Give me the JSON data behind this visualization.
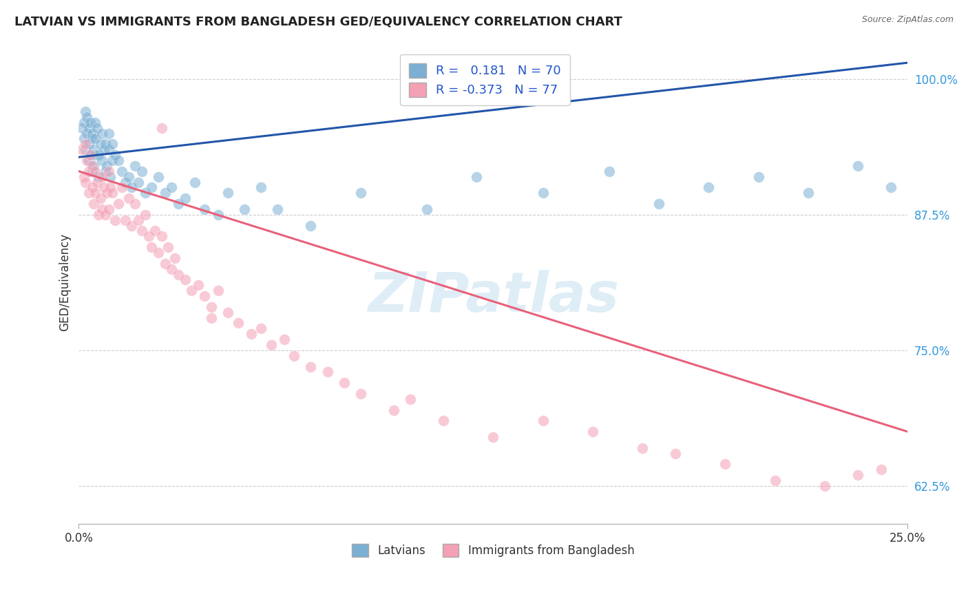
{
  "title": "LATVIAN VS IMMIGRANTS FROM BANGLADESH GED/EQUIVALENCY CORRELATION CHART",
  "source": "Source: ZipAtlas.com",
  "ylabel": "GED/Equivalency",
  "y_ticks": [
    62.5,
    75.0,
    87.5,
    100.0
  ],
  "y_tick_labels": [
    "62.5%",
    "75.0%",
    "87.5%",
    "100.0%"
  ],
  "x_range": [
    0.0,
    25.0
  ],
  "y_range": [
    59.0,
    103.5
  ],
  "blue_R": 0.181,
  "blue_N": 70,
  "pink_R": -0.373,
  "pink_N": 77,
  "blue_color": "#7BAFD4",
  "pink_color": "#F4A0B5",
  "blue_line_color": "#2255AA",
  "pink_line_color": "#E8607A",
  "watermark": "ZIPatlas",
  "blue_line_x0": 0.0,
  "blue_line_y0": 92.8,
  "blue_line_x1": 25.0,
  "blue_line_y1": 101.5,
  "pink_line_x0": 0.0,
  "pink_line_y0": 91.5,
  "pink_line_x1": 25.0,
  "pink_line_y1": 67.5,
  "blue_scatter_x": [
    0.1,
    0.15,
    0.15,
    0.2,
    0.2,
    0.25,
    0.25,
    0.3,
    0.3,
    0.3,
    0.35,
    0.35,
    0.4,
    0.4,
    0.4,
    0.45,
    0.45,
    0.5,
    0.5,
    0.5,
    0.55,
    0.6,
    0.6,
    0.65,
    0.7,
    0.7,
    0.75,
    0.8,
    0.8,
    0.85,
    0.9,
    0.9,
    0.95,
    1.0,
    1.0,
    1.1,
    1.2,
    1.3,
    1.4,
    1.5,
    1.6,
    1.7,
    1.8,
    1.9,
    2.0,
    2.2,
    2.4,
    2.6,
    2.8,
    3.0,
    3.2,
    3.5,
    3.8,
    4.2,
    4.5,
    5.0,
    5.5,
    6.0,
    7.0,
    8.5,
    10.5,
    12.0,
    14.0,
    16.0,
    17.5,
    19.0,
    20.5,
    22.0,
    23.5,
    24.5
  ],
  "blue_scatter_y": [
    95.5,
    96.0,
    94.5,
    93.5,
    97.0,
    95.0,
    96.5,
    92.5,
    94.0,
    95.5,
    93.0,
    96.0,
    91.5,
    94.5,
    95.0,
    92.0,
    93.5,
    93.0,
    94.5,
    96.0,
    95.5,
    91.0,
    93.0,
    94.0,
    92.5,
    95.0,
    93.5,
    91.5,
    94.0,
    92.0,
    93.5,
    95.0,
    91.0,
    92.5,
    94.0,
    93.0,
    92.5,
    91.5,
    90.5,
    91.0,
    90.0,
    92.0,
    90.5,
    91.5,
    89.5,
    90.0,
    91.0,
    89.5,
    90.0,
    88.5,
    89.0,
    90.5,
    88.0,
    87.5,
    89.5,
    88.0,
    90.0,
    88.0,
    86.5,
    89.5,
    88.0,
    91.0,
    89.5,
    91.5,
    88.5,
    90.0,
    91.0,
    89.5,
    92.0,
    90.0
  ],
  "pink_scatter_x": [
    0.1,
    0.15,
    0.2,
    0.2,
    0.25,
    0.3,
    0.3,
    0.35,
    0.4,
    0.4,
    0.45,
    0.5,
    0.5,
    0.55,
    0.6,
    0.65,
    0.7,
    0.7,
    0.75,
    0.8,
    0.85,
    0.9,
    0.9,
    0.95,
    1.0,
    1.1,
    1.2,
    1.3,
    1.4,
    1.5,
    1.6,
    1.7,
    1.8,
    1.9,
    2.0,
    2.1,
    2.2,
    2.3,
    2.4,
    2.5,
    2.6,
    2.7,
    2.8,
    2.9,
    3.0,
    3.2,
    3.4,
    3.6,
    3.8,
    4.0,
    4.2,
    4.5,
    4.8,
    5.2,
    5.5,
    5.8,
    6.2,
    6.5,
    7.0,
    7.5,
    8.0,
    8.5,
    9.5,
    10.0,
    11.0,
    12.5,
    14.0,
    15.5,
    17.0,
    18.0,
    19.5,
    21.0,
    22.5,
    23.5,
    24.2,
    2.5,
    4.0
  ],
  "pink_scatter_y": [
    93.5,
    91.0,
    94.0,
    90.5,
    92.5,
    89.5,
    91.5,
    93.0,
    90.0,
    92.0,
    88.5,
    91.5,
    89.5,
    90.5,
    87.5,
    89.0,
    91.0,
    88.0,
    90.0,
    87.5,
    89.5,
    91.5,
    88.0,
    90.0,
    89.5,
    87.0,
    88.5,
    90.0,
    87.0,
    89.0,
    86.5,
    88.5,
    87.0,
    86.0,
    87.5,
    85.5,
    84.5,
    86.0,
    84.0,
    85.5,
    83.0,
    84.5,
    82.5,
    83.5,
    82.0,
    81.5,
    80.5,
    81.0,
    80.0,
    79.0,
    80.5,
    78.5,
    77.5,
    76.5,
    77.0,
    75.5,
    76.0,
    74.5,
    73.5,
    73.0,
    72.0,
    71.0,
    69.5,
    70.5,
    68.5,
    67.0,
    68.5,
    67.5,
    66.0,
    65.5,
    64.5,
    63.0,
    62.5,
    63.5,
    64.0,
    95.5,
    78.0
  ]
}
